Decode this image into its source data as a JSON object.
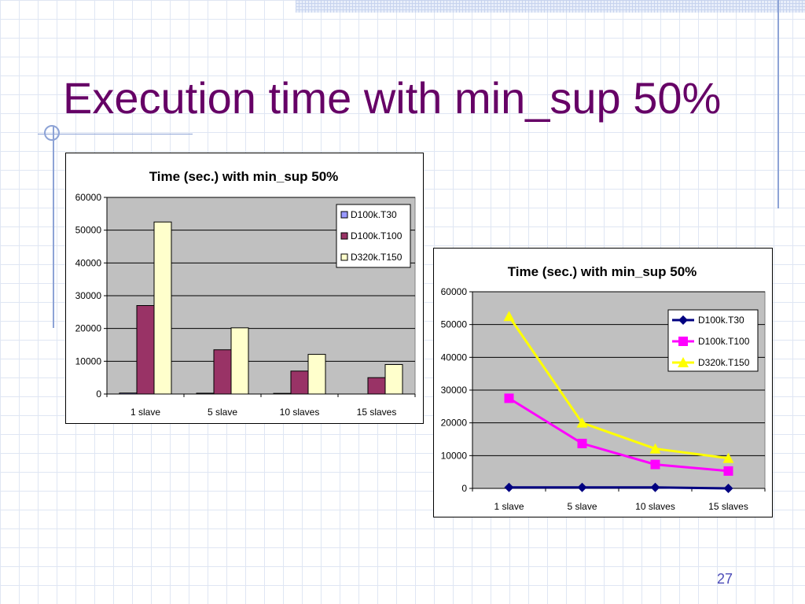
{
  "slide": {
    "title": "Execution time with min_sup 50%",
    "page_number": "27"
  },
  "colors": {
    "title": "#660066",
    "plot_area": "#c0c0c0",
    "page_number": "#4b4bb8"
  },
  "chart_data": [
    {
      "type": "bar",
      "title": "Time (sec.) with min_sup 50%",
      "categories": [
        "1 slave",
        "5 slave",
        "10 slaves",
        "15 slaves"
      ],
      "ylim": [
        0,
        60000
      ],
      "yticks": [
        "0",
        "10000",
        "20000",
        "30000",
        "40000",
        "50000",
        "60000"
      ],
      "grid": true,
      "legend_position": "top-right",
      "series": [
        {
          "name": "D100k.T30",
          "color": "#9999ff",
          "values": [
            300,
            250,
            200,
            0
          ]
        },
        {
          "name": "D100k.T100",
          "color": "#993366",
          "values": [
            27000,
            13500,
            7000,
            5000
          ]
        },
        {
          "name": "D320k.T150",
          "color": "#ffffcc",
          "values": [
            52500,
            20200,
            12100,
            9000
          ]
        }
      ]
    },
    {
      "type": "line",
      "title": "Time (sec.) with min_sup 50%",
      "categories": [
        "1 slave",
        "5 slave",
        "10 slaves",
        "15 slaves"
      ],
      "ylim": [
        0,
        60000
      ],
      "yticks": [
        "0",
        "10000",
        "20000",
        "30000",
        "40000",
        "50000",
        "60000"
      ],
      "grid": true,
      "legend_position": "top-right",
      "series": [
        {
          "name": "D100k.T30",
          "color": "#000080",
          "marker": "diamond",
          "values": [
            300,
            300,
            300,
            0
          ]
        },
        {
          "name": "D100k.T100",
          "color": "#ff00ff",
          "marker": "square",
          "values": [
            27500,
            13700,
            7300,
            5300
          ]
        },
        {
          "name": "D320k.T150",
          "color": "#ffff00",
          "marker": "triangle",
          "values": [
            52500,
            20000,
            12100,
            9200
          ]
        }
      ]
    }
  ]
}
